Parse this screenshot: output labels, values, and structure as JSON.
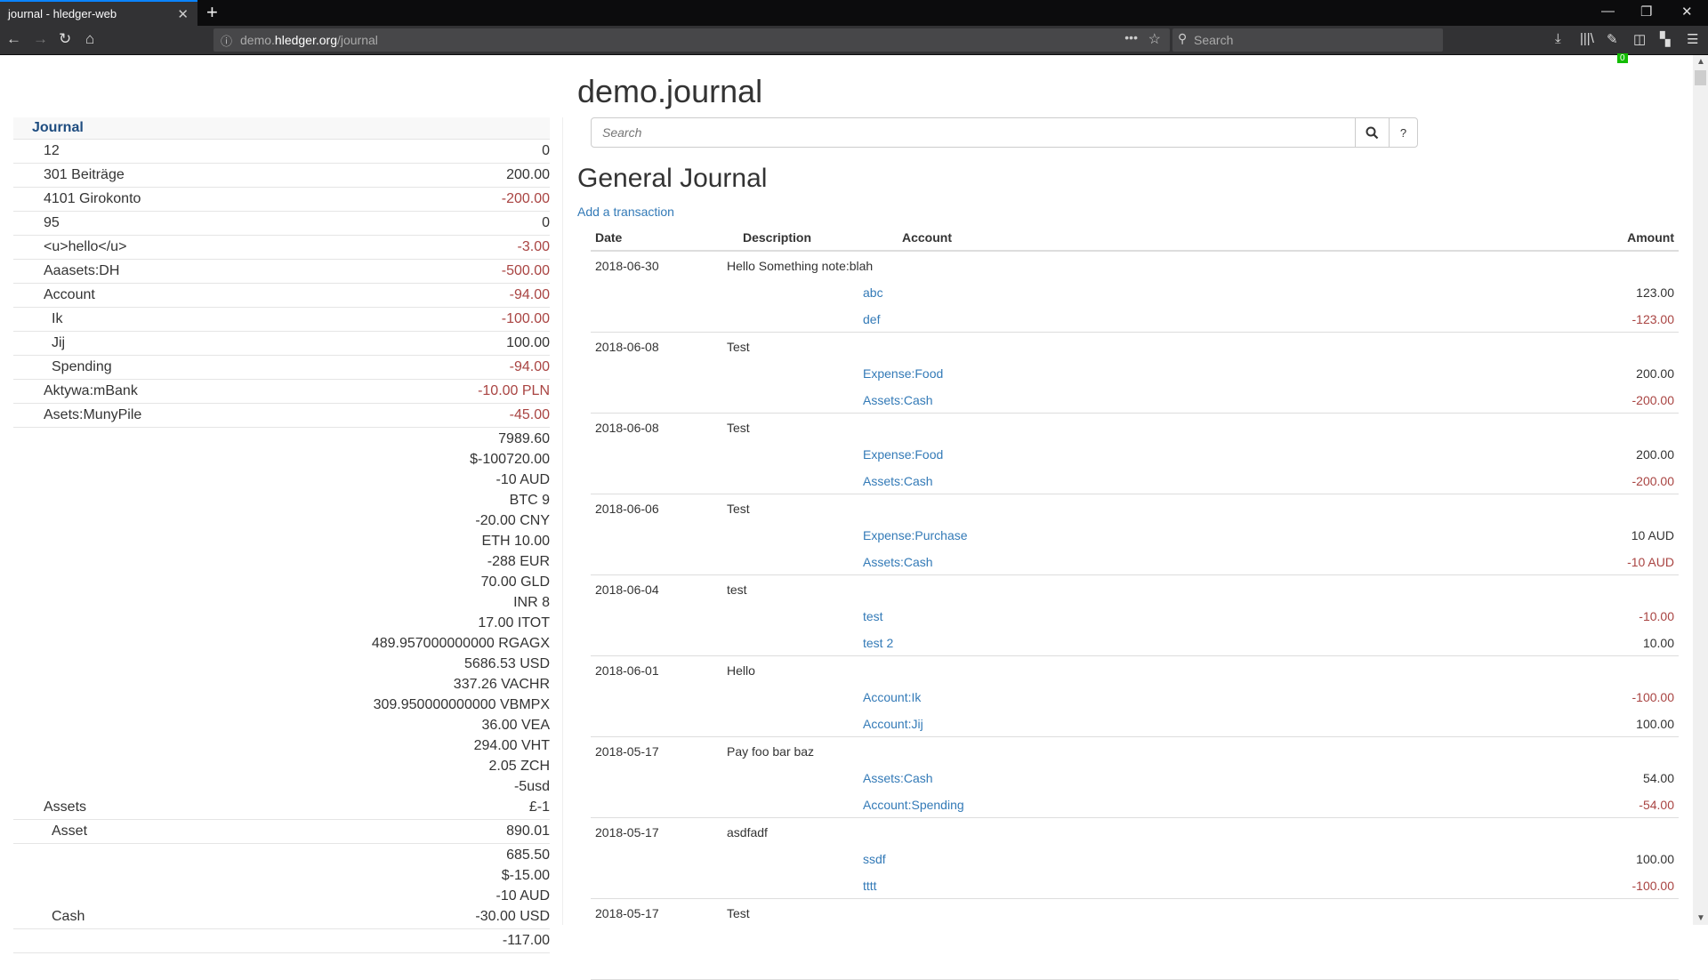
{
  "browser": {
    "tab_title": "journal - hledger-web",
    "url_prefix": "demo.",
    "url_host": "hledger.org",
    "url_path": "/journal",
    "search_placeholder": "Search",
    "addon_badge": "0"
  },
  "colors": {
    "link": "#337ab7",
    "negative": "#a94442",
    "sidebar_heading": "#1f4d80"
  },
  "sidebar": {
    "heading": "Journal",
    "rows": [
      {
        "name": "12",
        "level": 0,
        "amounts": [
          "0"
        ],
        "neg": false
      },
      {
        "name": "301 Beiträge",
        "level": 0,
        "amounts": [
          "200.00"
        ],
        "neg": false
      },
      {
        "name": "4101 Girokonto",
        "level": 0,
        "amounts": [
          "-200.00"
        ],
        "neg": true
      },
      {
        "name": "95",
        "level": 0,
        "amounts": [
          "0"
        ],
        "neg": false
      },
      {
        "name": "<u>hello</u>",
        "level": 0,
        "amounts": [
          "-3.00"
        ],
        "neg": true
      },
      {
        "name": "Aaasets:DH",
        "level": 0,
        "amounts": [
          "-500.00"
        ],
        "neg": true
      },
      {
        "name": "Account",
        "level": 0,
        "amounts": [
          "-94.00"
        ],
        "neg": true
      },
      {
        "name": "Ik",
        "level": 1,
        "amounts": [
          "-100.00"
        ],
        "neg": true
      },
      {
        "name": "Jij",
        "level": 1,
        "amounts": [
          "100.00"
        ],
        "neg": false
      },
      {
        "name": "Spending",
        "level": 1,
        "amounts": [
          "-94.00"
        ],
        "neg": true
      },
      {
        "name": "Aktywa:mBank",
        "level": 0,
        "amounts": [
          "-10.00 PLN"
        ],
        "neg": true
      },
      {
        "name": "Asets:MunyPile",
        "level": 0,
        "amounts": [
          "-45.00"
        ],
        "neg": true
      },
      {
        "name": "Assets",
        "level": 0,
        "amounts": [
          "7989.60",
          "$-100720.00",
          "-10 AUD",
          "BTC 9",
          "-20.00 CNY",
          "ETH 10.00",
          "-288 EUR",
          "70.00 GLD",
          "INR 8",
          "17.00 ITOT",
          "489.957000000000 RGAGX",
          "5686.53 USD",
          "337.26 VACHR",
          "309.950000000000 VBMPX",
          "36.00 VEA",
          "294.00 VHT",
          "2.05 ZCH",
          "-5usd",
          "£-1"
        ],
        "neg": false
      },
      {
        "name": "Asset",
        "level": 1,
        "amounts": [
          "890.01"
        ],
        "neg": false
      },
      {
        "name": "Cash",
        "level": 1,
        "amounts": [
          "685.50",
          "$-15.00",
          "-10 AUD",
          "-30.00 USD"
        ],
        "neg": false
      },
      {
        "name": "",
        "level": 1,
        "amounts": [
          "-117.00"
        ],
        "neg": false
      }
    ]
  },
  "main": {
    "title": "demo.journal",
    "search_placeholder": "Search",
    "help_label": "?",
    "heading": "General Journal",
    "add_link": "Add a transaction",
    "columns": {
      "date": "Date",
      "description": "Description",
      "account": "Account",
      "amount": "Amount"
    },
    "transactions": [
      {
        "date": "2018-06-30",
        "description": "Hello Something note:blah",
        "postings": [
          {
            "account": "abc",
            "amount": "123.00",
            "neg": false
          },
          {
            "account": "def",
            "amount": "-123.00",
            "neg": true
          }
        ]
      },
      {
        "date": "2018-06-08",
        "description": "Test",
        "postings": [
          {
            "account": "Expense:Food",
            "amount": "200.00",
            "neg": false
          },
          {
            "account": "Assets:Cash",
            "amount": "-200.00",
            "neg": true
          }
        ]
      },
      {
        "date": "2018-06-08",
        "description": "Test",
        "postings": [
          {
            "account": "Expense:Food",
            "amount": "200.00",
            "neg": false
          },
          {
            "account": "Assets:Cash",
            "amount": "-200.00",
            "neg": true
          }
        ]
      },
      {
        "date": "2018-06-06",
        "description": "Test",
        "postings": [
          {
            "account": "Expense:Purchase",
            "amount": "10 AUD",
            "neg": false
          },
          {
            "account": "Assets:Cash",
            "amount": "-10 AUD",
            "neg": true
          }
        ]
      },
      {
        "date": "2018-06-04",
        "description": "test",
        "postings": [
          {
            "account": "test",
            "amount": "-10.00",
            "neg": true
          },
          {
            "account": "test 2",
            "amount": "10.00",
            "neg": false
          }
        ]
      },
      {
        "date": "2018-06-01",
        "description": "Hello",
        "postings": [
          {
            "account": "Account:Ik",
            "amount": "-100.00",
            "neg": true
          },
          {
            "account": "Account:Jij",
            "amount": "100.00",
            "neg": false
          }
        ]
      },
      {
        "date": "2018-05-17",
        "description": "Pay foo bar baz",
        "postings": [
          {
            "account": "Assets:Cash",
            "amount": "54.00",
            "neg": false
          },
          {
            "account": "Account:Spending",
            "amount": "-54.00",
            "neg": true
          }
        ]
      },
      {
        "date": "2018-05-17",
        "description": "asdfadf",
        "postings": [
          {
            "account": "ssdf",
            "amount": "100.00",
            "neg": false
          },
          {
            "account": "tttt",
            "amount": "-100.00",
            "neg": true
          }
        ]
      },
      {
        "date": "2018-05-17",
        "description": "Test",
        "postings": []
      }
    ]
  }
}
